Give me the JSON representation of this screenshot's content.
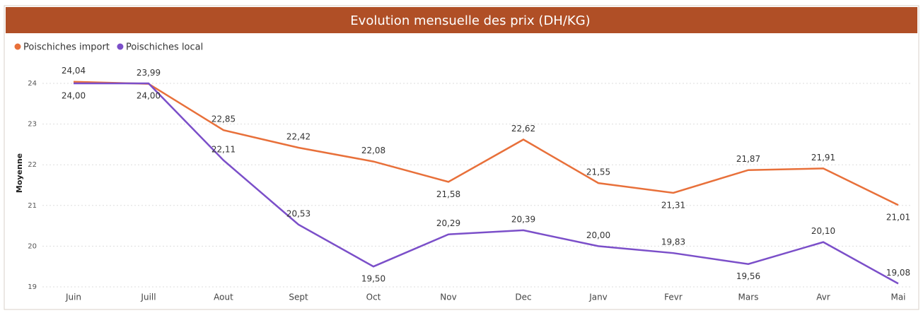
{
  "chart_data": {
    "type": "line",
    "title": "Evolution mensuelle des prix (DH/KG)",
    "y_label": "Moyenne",
    "categories": [
      "Juin",
      "Juill",
      "Aout",
      "Sept",
      "Oct",
      "Nov",
      "Dec",
      "Janv",
      "Fevr",
      "Mars",
      "Avr",
      "Mai"
    ],
    "series": [
      {
        "name": "Poischiches import",
        "color": "#e8703a",
        "values": [
          24.04,
          23.99,
          22.85,
          22.42,
          22.08,
          21.58,
          22.62,
          21.55,
          21.31,
          21.87,
          21.91,
          21.01
        ],
        "value_labels": [
          "24,04",
          "23,99",
          "22,85",
          "22,42",
          "22,08",
          "21,58",
          "22,62",
          "21,55",
          "21,31",
          "21,87",
          "21,91",
          "21,01"
        ]
      },
      {
        "name": "Poischiches local",
        "color": "#7b4fc9",
        "values": [
          24.0,
          24.0,
          22.11,
          20.53,
          19.5,
          20.29,
          20.39,
          20.0,
          19.83,
          19.56,
          20.1,
          19.08
        ],
        "value_labels": [
          "24,00",
          "24,00",
          "22,11",
          "20,53",
          "19,50",
          "20,29",
          "20,39",
          "20,00",
          "19,83",
          "19,56",
          "20,10",
          "19,08"
        ]
      }
    ],
    "ylim": [
      19,
      24.3
    ],
    "yticks": [
      19,
      20,
      21,
      22,
      23,
      24
    ],
    "grid": true
  }
}
